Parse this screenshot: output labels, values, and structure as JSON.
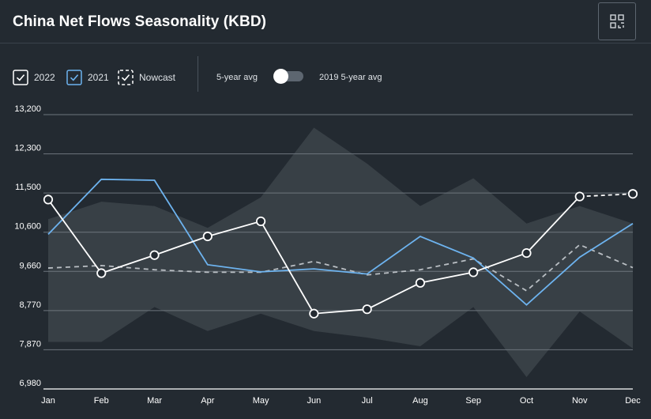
{
  "header": {
    "title": "China Net Flows Seasonality (KBD)"
  },
  "toolbar": {
    "layout_icon": "grid-layout-icon"
  },
  "legend": {
    "items": [
      {
        "label": "2022",
        "checked": true,
        "color": "#ffffff",
        "style": "solid"
      },
      {
        "label": "2021",
        "checked": true,
        "color": "#6db3ef",
        "style": "solid"
      },
      {
        "label": "Nowcast",
        "checked": true,
        "color": "#ffffff",
        "style": "dashed"
      }
    ],
    "toggle": {
      "left_label": "5-year avg",
      "right_label": "2019 5-year avg",
      "state": "left"
    }
  },
  "colors": {
    "background": "#232a31",
    "band": "#3a4148",
    "grid": "#6d757d",
    "series_2022": "#ffffff",
    "series_2021": "#6db3ef",
    "avg": "#b9bec3"
  },
  "chart_data": {
    "type": "line",
    "title": "China Net Flows Seasonality (KBD)",
    "xlabel": "",
    "ylabel": "",
    "categories": [
      "Jan",
      "Feb",
      "Mar",
      "Apr",
      "May",
      "Jun",
      "Jul",
      "Aug",
      "Sep",
      "Oct",
      "Nov",
      "Dec"
    ],
    "ylim": [
      6980,
      13200
    ],
    "yticks": [
      6980,
      7870,
      8770,
      9660,
      10600,
      11500,
      12300,
      13200
    ],
    "ytick_labels": [
      "6,980",
      "7,870",
      "8,770",
      "9,660",
      "10,600",
      "11,500",
      "12,300",
      "13,200"
    ],
    "grid": true,
    "band": {
      "name": "5-year range",
      "upper": [
        10900,
        11300,
        11200,
        10700,
        11400,
        12900,
        12100,
        11200,
        11800,
        10800,
        11200,
        10800
      ],
      "lower": [
        8050,
        8050,
        8850,
        8300,
        8700,
        8300,
        8150,
        7950,
        8850,
        7250,
        8750,
        7900
      ]
    },
    "series": [
      {
        "name": "2022",
        "values": [
          11350,
          9620,
          10050,
          10500,
          10850,
          8700,
          8800,
          9400,
          9640,
          10100,
          null,
          null
        ],
        "markers": true,
        "style": "solid"
      },
      {
        "name": "Nowcast",
        "values": [
          null,
          null,
          null,
          null,
          null,
          null,
          null,
          null,
          null,
          10100,
          11420,
          11480
        ],
        "markers": true,
        "style": "solid-dashed-tail"
      },
      {
        "name": "2021",
        "values": [
          10550,
          11780,
          11760,
          9820,
          9650,
          9720,
          9600,
          10500,
          9980,
          8900,
          10000,
          10800
        ],
        "markers": false,
        "style": "solid"
      },
      {
        "name": "5-year avg",
        "values": [
          9740,
          9800,
          9700,
          9640,
          9640,
          9900,
          9580,
          9700,
          9960,
          9220,
          10300,
          9750
        ],
        "markers": false,
        "style": "dashed"
      }
    ]
  }
}
